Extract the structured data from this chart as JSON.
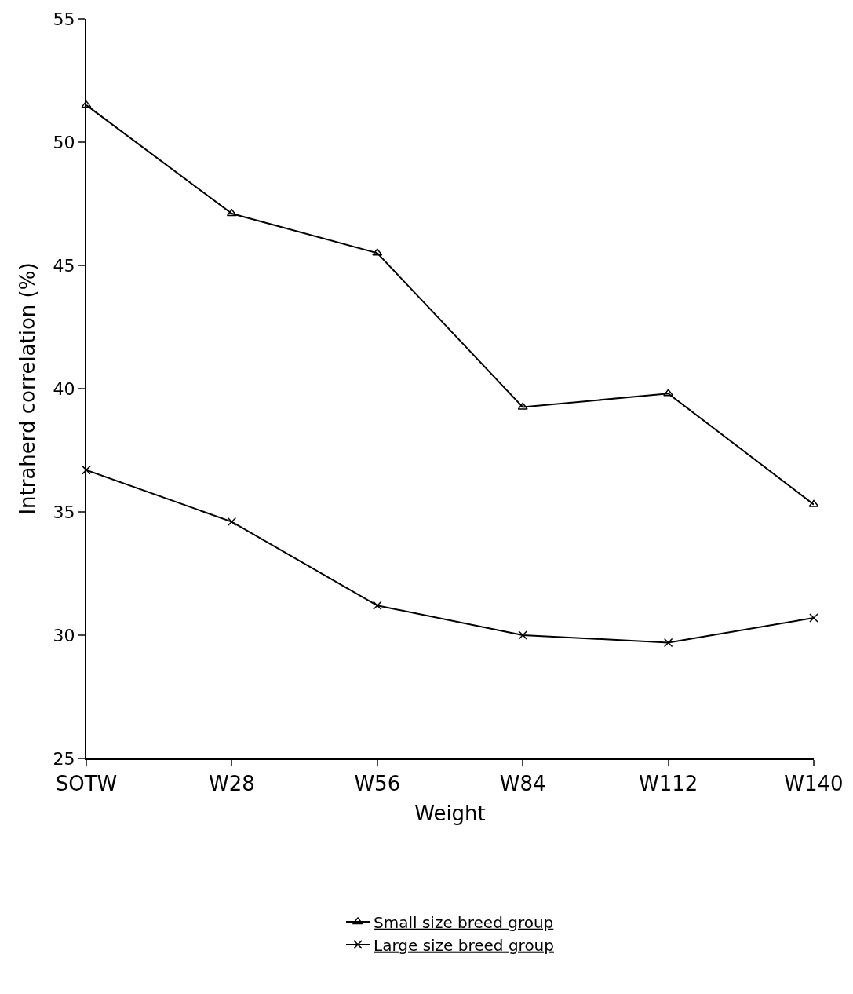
{
  "chart_data": {
    "type": "line",
    "xlabel": "Weight",
    "ylabel": "Intraherd correlation (%)",
    "categories": [
      "SOTW",
      "W28",
      "W56",
      "W84",
      "W112",
      "W140"
    ],
    "series": [
      {
        "name": "Small size breed group",
        "color": "#000000",
        "marker": "triangle",
        "values": [
          51.5,
          47.1,
          45.5,
          39.25,
          39.8,
          35.3
        ]
      },
      {
        "name": "Large size breed group",
        "color": "#000000",
        "marker": "cross",
        "values": [
          36.7,
          34.6,
          31.2,
          30.0,
          29.7,
          30.7
        ]
      }
    ],
    "ylim": [
      25,
      55
    ],
    "yticks": [
      25,
      30,
      35,
      40,
      45,
      50,
      55
    ],
    "legend": "bottom",
    "line_style": "solid"
  }
}
